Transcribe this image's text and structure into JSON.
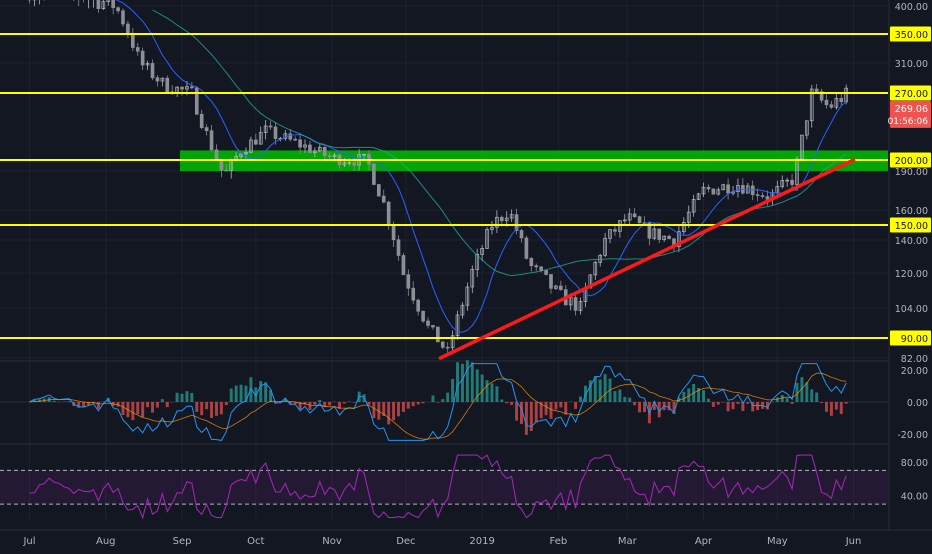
{
  "chart_data": {
    "type": "candlestick",
    "price_axis_ticks": [
      400,
      310,
      270,
      200,
      190,
      160,
      140,
      120,
      104,
      90,
      82
    ],
    "x_ticks": [
      "Jul",
      "Aug",
      "Sep",
      "Oct",
      "Nov",
      "Dec",
      "2019",
      "Feb",
      "Mar",
      "Apr",
      "May",
      "Jun"
    ],
    "horizontal_levels": [
      {
        "value": 350,
        "label": "350.00"
      },
      {
        "value": 270,
        "label": "270.00"
      },
      {
        "value": 200,
        "label": "200.00"
      },
      {
        "value": 150,
        "label": "150.00"
      },
      {
        "value": 90,
        "label": "90.00"
      }
    ],
    "support_zone": {
      "from": 190,
      "to": 210
    },
    "trendline": {
      "from": {
        "date": "2018-12-15",
        "value": 82
      },
      "to": {
        "date": "2019-06-01",
        "value": 200
      }
    },
    "current_price": {
      "value": 269.06,
      "label": "269.06",
      "countdown": "01:56:06"
    },
    "price_path": [
      {
        "date": "2018-07-01",
        "value": 420
      },
      {
        "date": "2018-07-20",
        "value": 415
      },
      {
        "date": "2018-08-05",
        "value": 400
      },
      {
        "date": "2018-08-15",
        "value": 310
      },
      {
        "date": "2018-08-25",
        "value": 280
      },
      {
        "date": "2018-09-05",
        "value": 270
      },
      {
        "date": "2018-09-12",
        "value": 220
      },
      {
        "date": "2018-09-18",
        "value": 185
      },
      {
        "date": "2018-09-25",
        "value": 210
      },
      {
        "date": "2018-10-05",
        "value": 230
      },
      {
        "date": "2018-10-20",
        "value": 215
      },
      {
        "date": "2018-11-01",
        "value": 202
      },
      {
        "date": "2018-11-15",
        "value": 200
      },
      {
        "date": "2018-11-22",
        "value": 165
      },
      {
        "date": "2018-11-30",
        "value": 120
      },
      {
        "date": "2018-12-10",
        "value": 95
      },
      {
        "date": "2018-12-18",
        "value": 84
      },
      {
        "date": "2018-12-25",
        "value": 110
      },
      {
        "date": "2019-01-05",
        "value": 150
      },
      {
        "date": "2019-01-12",
        "value": 160
      },
      {
        "date": "2019-01-20",
        "value": 125
      },
      {
        "date": "2019-02-01",
        "value": 110
      },
      {
        "date": "2019-02-10",
        "value": 104
      },
      {
        "date": "2019-02-20",
        "value": 140
      },
      {
        "date": "2019-03-01",
        "value": 155
      },
      {
        "date": "2019-03-10",
        "value": 145
      },
      {
        "date": "2019-03-20",
        "value": 140
      },
      {
        "date": "2019-04-01",
        "value": 175
      },
      {
        "date": "2019-04-15",
        "value": 180
      },
      {
        "date": "2019-04-28",
        "value": 170
      },
      {
        "date": "2019-05-08",
        "value": 185
      },
      {
        "date": "2019-05-15",
        "value": 270
      },
      {
        "date": "2019-05-22",
        "value": 255
      },
      {
        "date": "2019-05-29",
        "value": 269
      }
    ],
    "indicator_1": {
      "ticks": [
        20,
        0,
        -20
      ],
      "labels": [
        "20.00",
        "0.00",
        "-20.00"
      ],
      "ylim": [
        -25,
        25
      ]
    },
    "indicator_2": {
      "ticks": [
        80,
        40
      ],
      "labels": [
        "80.00",
        "40.00"
      ],
      "ylim": [
        10,
        100
      ],
      "bands": [
        70,
        30
      ]
    },
    "colors": {
      "background": "#131722",
      "candle_up": "#b2b5be",
      "candle_down": "#8e8f94",
      "level_line": "#ffff00",
      "zone": "#00c800",
      "trendline": "#ff1a1a",
      "ma": "#2962ff",
      "rsi": "#9c27b0",
      "current_price": "#ef5350"
    }
  }
}
